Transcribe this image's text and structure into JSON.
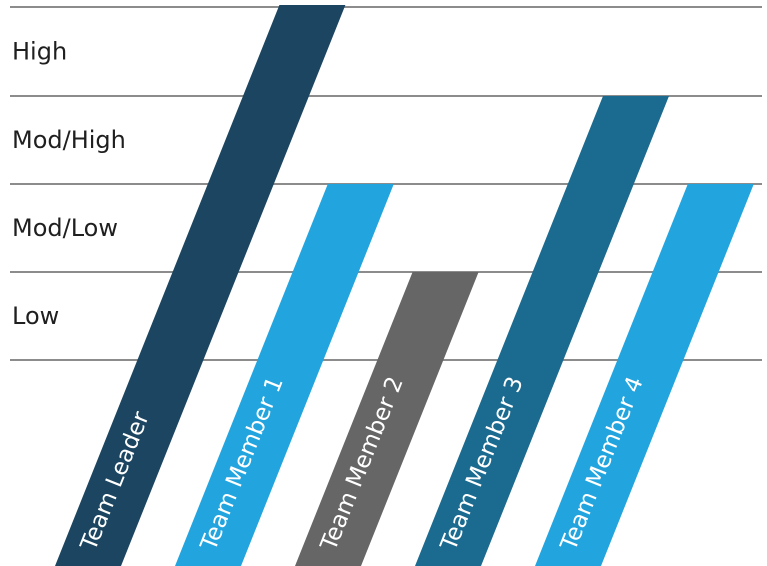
{
  "chart_data": {
    "type": "bar",
    "orientation": "slanted-vertical",
    "levels": [
      "Low",
      "Mod/Low",
      "Mod/High",
      "High"
    ],
    "categories": [
      "Team Leader",
      "Team Member 1",
      "Team Member 2",
      "Team Member 3",
      "Team Member 4"
    ],
    "values": [
      4,
      2,
      1,
      3,
      2
    ],
    "value_labels": [
      "High",
      "Mod/Low",
      "Low",
      "Mod/High",
      "Mod/Low"
    ],
    "colors": [
      "#1b4560",
      "#22a5df",
      "#666666",
      "#1b6a8f",
      "#22a5df"
    ],
    "grid": true,
    "legend": "none"
  }
}
